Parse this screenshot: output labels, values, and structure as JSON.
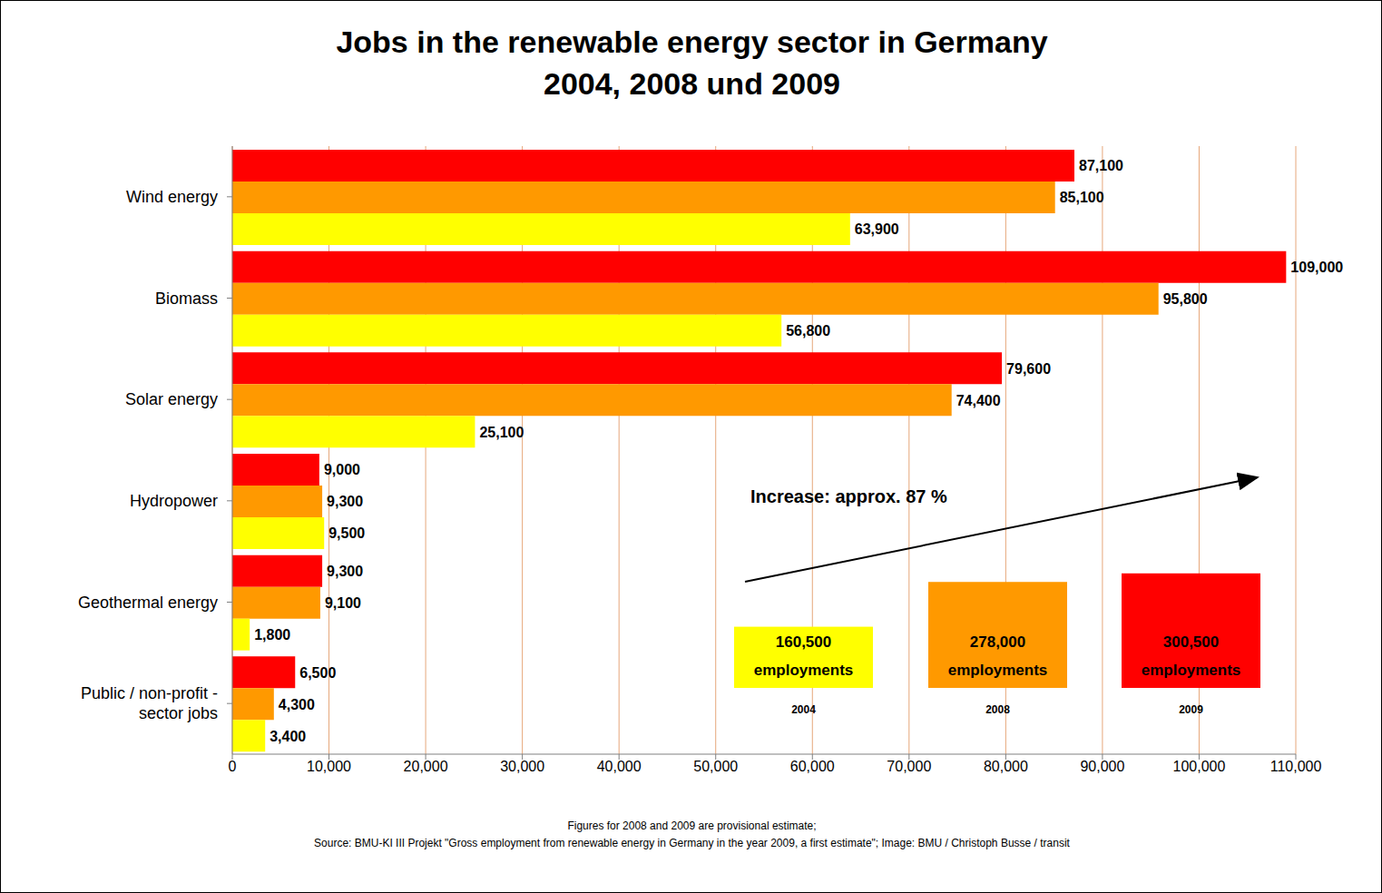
{
  "chart_data": {
    "type": "bar",
    "title": "Jobs in the renewable energy sector in Germany\n2004, 2008 und 2009",
    "orientation": "horizontal",
    "grid": true,
    "data_labels": true,
    "legend": "lower right",
    "categories": [
      "Wind energy",
      "Biomass",
      "Solar energy",
      "Hydropower",
      "Geothermal energy",
      "Public / non-profit - sector jobs"
    ],
    "series": [
      {
        "name": "2009",
        "color": "#ff0000",
        "values": [
          87100,
          109000,
          79600,
          9000,
          9300,
          6500
        ],
        "value_labels": [
          "87,100",
          "109,000",
          "79,600",
          "9,000",
          "9,300",
          "6,500"
        ],
        "total": 300500,
        "total_label": "300,500"
      },
      {
        "name": "2008",
        "color": "#ff9900",
        "values": [
          85100,
          95800,
          74400,
          9300,
          9100,
          4300
        ],
        "value_labels": [
          "85,100",
          "95,800",
          "74,400",
          "9,300",
          "9,100",
          "4,300"
        ],
        "total": 278000,
        "total_label": "278,000"
      },
      {
        "name": "2004",
        "color": "#ffff00",
        "values": [
          63900,
          56800,
          25100,
          9500,
          1800,
          3400
        ],
        "value_labels": [
          "63,900",
          "56,800",
          "25,100",
          "9,500",
          "1,800",
          "3,400"
        ],
        "total": 160500,
        "total_label": "160,500"
      }
    ],
    "total_unit": "employments",
    "annotation": "Increase: approx. 87 %",
    "xlim": [
      0,
      110000
    ],
    "xticks": [
      0,
      {
        "value": 10000,
        "label": "10,000"
      },
      {
        "value": 20000,
        "label": "20,000"
      },
      {
        "value": 30000,
        "label": "30,000"
      },
      {
        "value": 40000,
        "label": "40,000"
      },
      {
        "value": 50000,
        "label": "50,000"
      },
      {
        "value": 60000,
        "label": "60,000"
      },
      {
        "value": 70000,
        "label": "70,000"
      },
      {
        "value": 80000,
        "label": "80,000"
      },
      {
        "value": 90000,
        "label": "90,000"
      },
      {
        "value": 100000,
        "label": "100,000"
      },
      {
        "value": 110000,
        "label": "110,000"
      }
    ],
    "notes": [
      "Figures for 2008 and 2009 are provisional estimate;",
      "Source: BMU-KI III Projekt \"Gross employment from renewable energy in Germany in the year 2009, a first estimate\"; Image: BMU / Christoph Busse / transit"
    ]
  }
}
